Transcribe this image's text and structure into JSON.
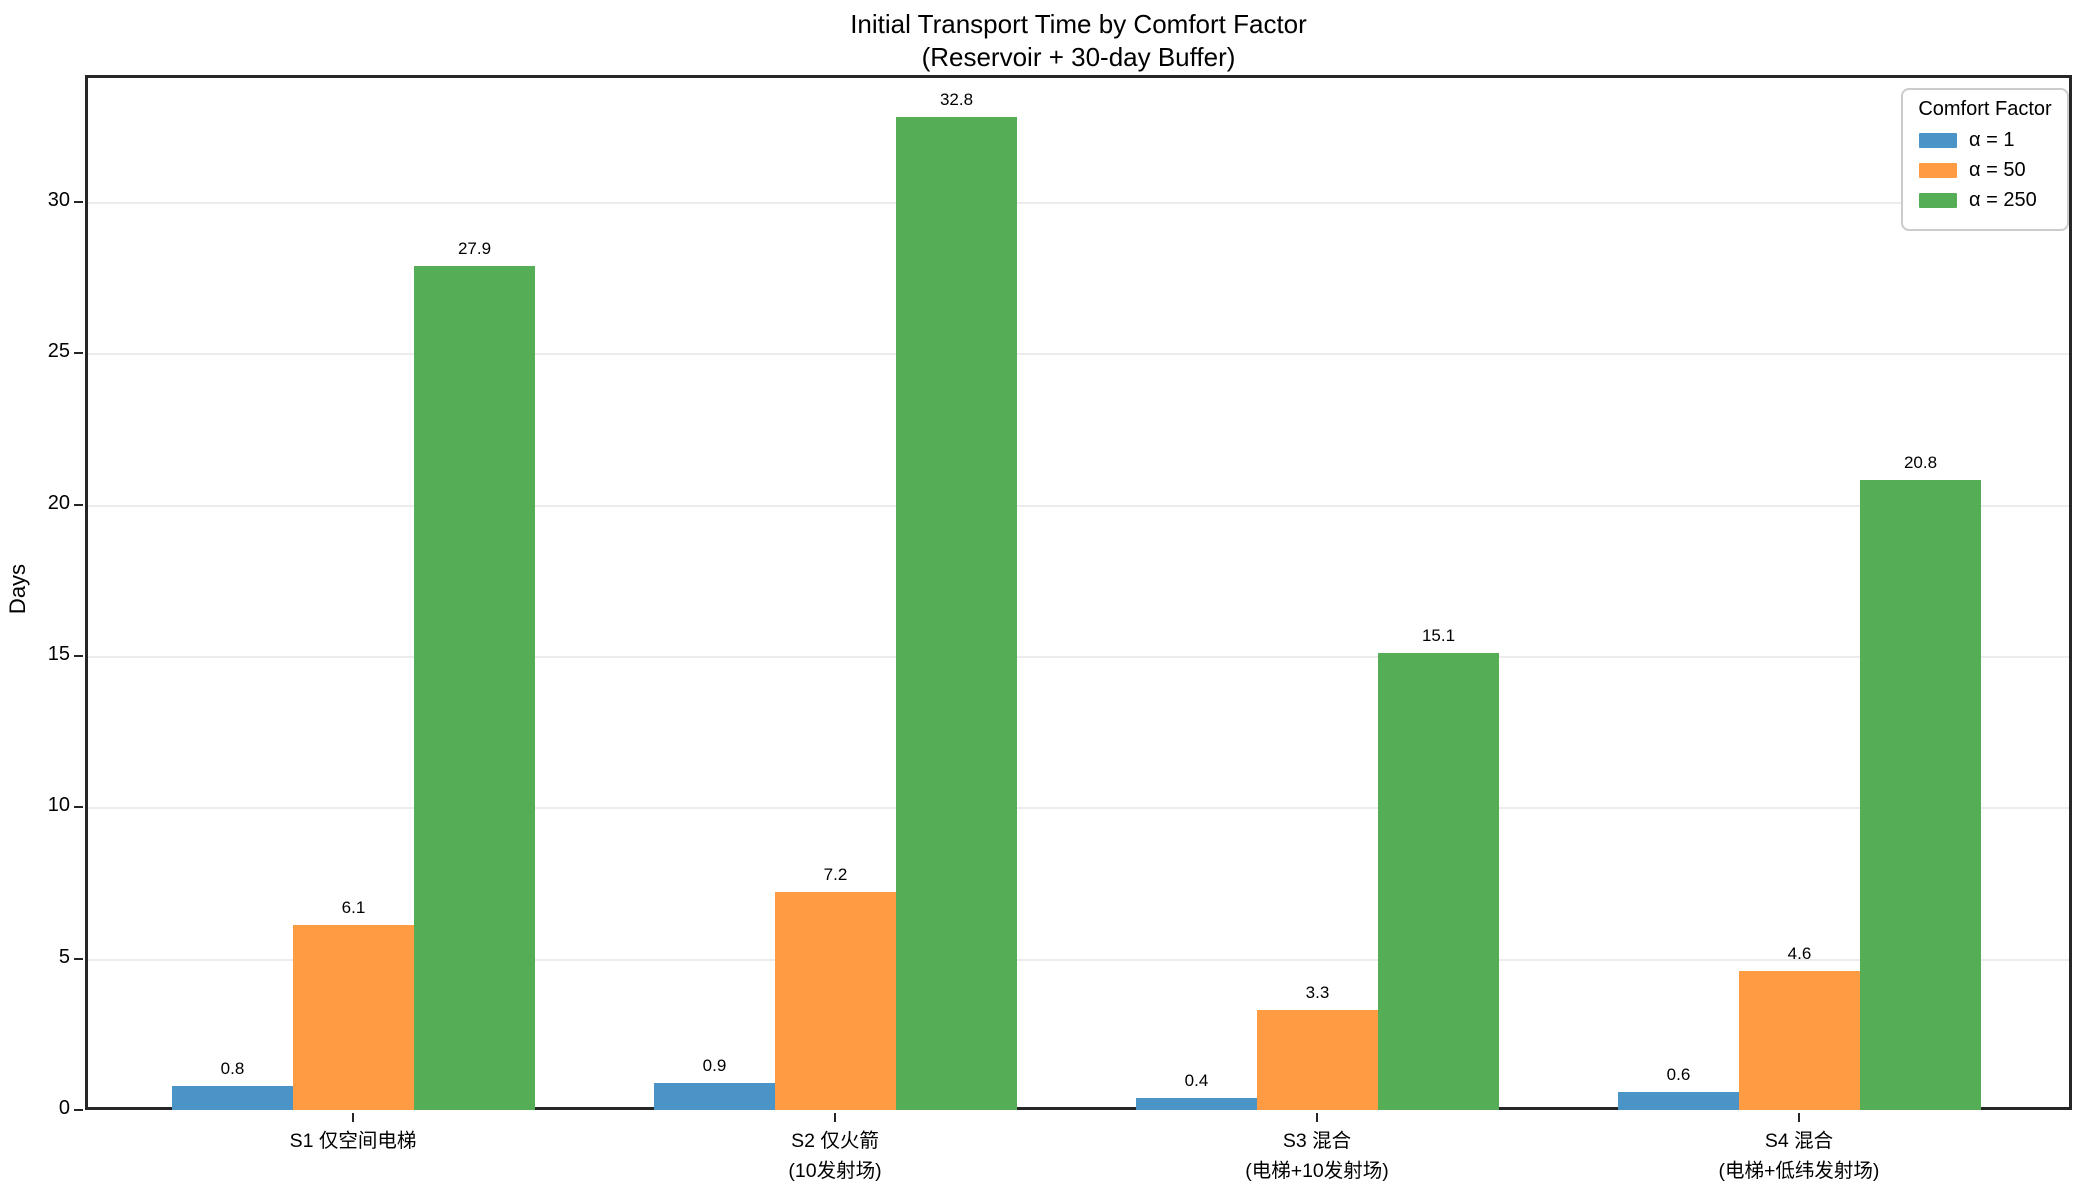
{
  "title": {
    "line1": "Initial Transport Time by Comfort Factor",
    "line2": "(Reservoir + 30-day Buffer)"
  },
  "y_axis": {
    "label": "Days"
  },
  "legend": {
    "title": "Comfort Factor"
  },
  "colors": {
    "spine": "#262626",
    "grid": "#ececec",
    "background": "#ffffff"
  },
  "chart_data": {
    "type": "bar",
    "title": "Initial Transport Time by Comfort Factor",
    "subtitle": "(Reservoir + 30-day Buffer)",
    "xlabel": "",
    "ylabel": "Days",
    "ylim": [
      0,
      34
    ],
    "yticks": [
      0,
      5,
      10,
      15,
      20,
      25,
      30
    ],
    "grid": true,
    "legend_title": "Comfort Factor",
    "legend_position": "upper right",
    "categories": [
      "S1 仅空间电梯",
      "S2 仅火箭\n(10发射场)",
      "S3 混合\n(电梯+10发射场)",
      "S4 混合\n(电梯+低纬发射场)"
    ],
    "series": [
      {
        "name": "α = 1",
        "color": "#4a94c8",
        "values": [
          0.8,
          0.9,
          0.4,
          0.6
        ]
      },
      {
        "name": "α = 50",
        "color": "#ff9b42",
        "values": [
          6.1,
          7.2,
          3.3,
          4.6
        ]
      },
      {
        "name": "α = 250",
        "color": "#55ae55",
        "values": [
          27.9,
          32.8,
          15.1,
          20.8
        ]
      }
    ],
    "bar_value_labels": true
  }
}
